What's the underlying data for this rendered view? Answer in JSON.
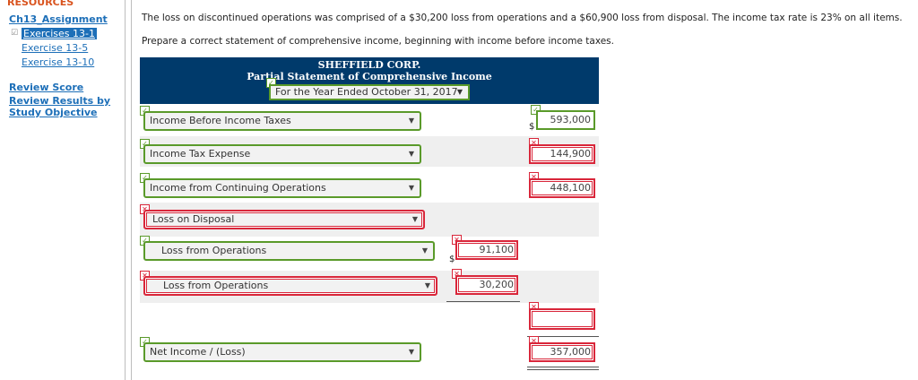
{
  "sidebar": {
    "resources": "RESOURCES",
    "assignment": "Ch13_Assignment",
    "links": [
      "Exercises 13-1",
      "Exercise 13-5",
      "Exercise 13-10"
    ],
    "review_score": "Review Score",
    "review_results": [
      "Review Results by",
      "Study Objective"
    ]
  },
  "problem": {
    "text": "The loss on discontinued operations was comprised of a $30,200 loss from operations and a $60,900 loss from disposal. The income tax rate is 23% on all items.",
    "instruction": "Prepare a correct statement of comprehensive income, beginning with income before income taxes."
  },
  "statement": {
    "company": "SHEFFIELD CORP.",
    "title": "Partial Statement of Comprehensive Income",
    "period": "For the Year Ended October 31, 2017"
  },
  "rows": [
    {
      "label": "Income Before Income Taxes",
      "value": "593,000",
      "currency": "$"
    },
    {
      "label": "Income Tax Expense",
      "value": "144,900"
    },
    {
      "label": "Income from Continuing Operations",
      "value": "448,100"
    },
    {
      "label": "Loss on Disposal"
    },
    {
      "label": "Loss from Operations",
      "value": "91,100",
      "currency": "$"
    },
    {
      "label": "Loss from Operations",
      "value": "30,200"
    },
    {
      "value": ""
    },
    {
      "label": "Net Income / (Loss)",
      "value": "357,000"
    }
  ],
  "colors": {
    "header_bg": "#003a6b",
    "correct": "#5a9a2a",
    "incorrect": "#d9263a",
    "link": "#1d6fb8"
  },
  "icons": {
    "correct": "checkmark-icon",
    "incorrect": "x-mark-icon",
    "dropdown": "chevron-down-icon"
  }
}
